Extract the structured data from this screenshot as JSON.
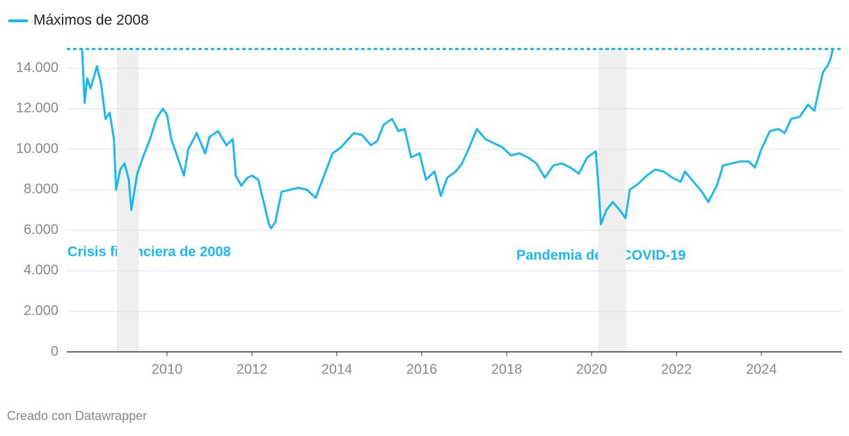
{
  "chart_data": {
    "type": "line",
    "reference": {
      "name": "Máximos de 2008",
      "value": 14950,
      "color": "#1ab8f0"
    },
    "shaded": [
      [
        2008.82,
        2009.34
      ],
      [
        2020.16,
        2020.82
      ]
    ],
    "annotations": [
      "Crisis financiera de 2008",
      "Pandemia de la COVID-19"
    ],
    "source": "Creado con Datawrapper",
    "x": [
      2008.0,
      2008.06,
      2008.12,
      2008.2,
      2008.35,
      2008.45,
      2008.55,
      2008.65,
      2008.75,
      2008.8,
      2008.9,
      2009.0,
      2009.1,
      2009.16,
      2009.3,
      2009.45,
      2009.6,
      2009.75,
      2009.9,
      2010.0,
      2010.1,
      2010.3,
      2010.4,
      2010.5,
      2010.7,
      2010.9,
      2011.0,
      2011.2,
      2011.4,
      2011.55,
      2011.62,
      2011.75,
      2011.9,
      2012.0,
      2012.15,
      2012.3,
      2012.4,
      2012.45,
      2012.55,
      2012.7,
      2012.9,
      2013.1,
      2013.3,
      2013.5,
      2013.7,
      2013.9,
      2014.1,
      2014.4,
      2014.6,
      2014.8,
      2014.95,
      2015.1,
      2015.3,
      2015.45,
      2015.6,
      2015.75,
      2015.95,
      2016.1,
      2016.3,
      2016.45,
      2016.6,
      2016.8,
      2016.95,
      2017.1,
      2017.3,
      2017.5,
      2017.7,
      2017.9,
      2018.1,
      2018.3,
      2018.5,
      2018.7,
      2018.9,
      2019.1,
      2019.3,
      2019.5,
      2019.7,
      2019.9,
      2020.1,
      2020.17,
      2020.22,
      2020.35,
      2020.5,
      2020.7,
      2020.8,
      2020.9,
      2021.1,
      2021.3,
      2021.5,
      2021.7,
      2021.9,
      2022.1,
      2022.2,
      2022.4,
      2022.6,
      2022.75,
      2022.95,
      2023.1,
      2023.3,
      2023.5,
      2023.7,
      2023.85,
      2024.0,
      2024.2,
      2024.4,
      2024.55,
      2024.7,
      2024.9,
      2025.1,
      2025.25,
      2025.32,
      2025.45,
      2025.55,
      2025.62,
      2025.68
    ],
    "series": [
      {
        "color": "#1ab8f0",
        "values": [
          14900,
          12300,
          13500,
          13000,
          14100,
          13200,
          11500,
          11800,
          10500,
          8000,
          9000,
          9300,
          8500,
          7000,
          8800,
          9700,
          10500,
          11500,
          12000,
          11700,
          10500,
          9300,
          8700,
          10000,
          10800,
          9800,
          10600,
          10900,
          10200,
          10500,
          8700,
          8200,
          8600,
          8700,
          8500,
          7200,
          6300,
          6100,
          6400,
          7900,
          8000,
          8100,
          8000,
          7600,
          8700,
          9800,
          10100,
          10800,
          10700,
          10200,
          10400,
          11200,
          11500,
          10900,
          11000,
          9600,
          9800,
          8500,
          8900,
          7700,
          8600,
          8900,
          9300,
          10000,
          11000,
          10500,
          10300,
          10100,
          9700,
          9800,
          9600,
          9300,
          8600,
          9200,
          9300,
          9100,
          8800,
          9600,
          9900,
          8000,
          6300,
          7000,
          7400,
          6900,
          6600,
          8000,
          8300,
          8700,
          9000,
          8900,
          8600,
          8400,
          8900,
          8400,
          7900,
          7400,
          8200,
          9200,
          9300,
          9400,
          9400,
          9100,
          10000,
          10900,
          11000,
          10800,
          11500,
          11600,
          12200,
          11900,
          12600,
          13800,
          14100,
          14400,
          14900
        ]
      }
    ],
    "xlim": [
      2007.64,
      2025.9
    ],
    "xticks": [
      2010,
      2012,
      2014,
      2016,
      2018,
      2020,
      2022,
      2024
    ],
    "ylim": [
      0,
      15000
    ],
    "yticks": [
      0,
      {
        "value": 2000,
        "label": "2.000"
      },
      {
        "value": 4000,
        "label": "4.000"
      },
      {
        "value": 6000,
        "label": "6.000"
      },
      {
        "value": 8000,
        "label": "8.000"
      },
      {
        "value": 10000,
        "label": "10.000"
      },
      {
        "value": 12000,
        "label": "12.000"
      },
      {
        "value": 14000,
        "label": "14.000"
      }
    ],
    "grid": true
  }
}
